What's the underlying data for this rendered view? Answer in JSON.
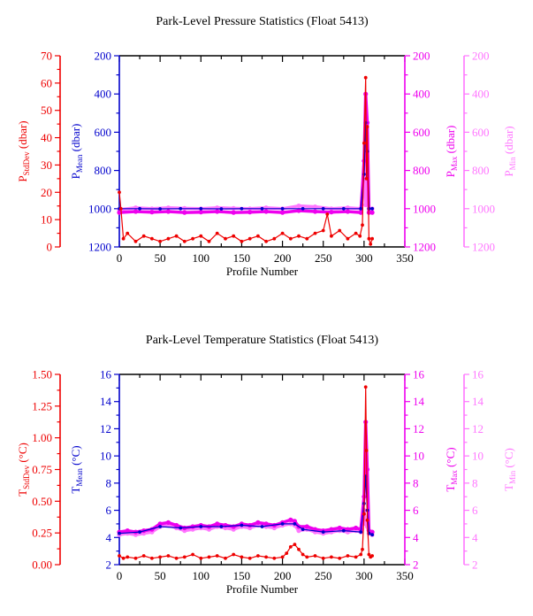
{
  "colors": {
    "stddev": "#ee0000",
    "mean": "#0000cc",
    "max": "#ee00ee",
    "min": "#ff77ff",
    "axis": "#000000"
  },
  "chart_data": [
    {
      "type": "scatter",
      "title": "Park-Level Pressure Statistics (Float 5413)",
      "xlabel": "Profile Number",
      "xlim": [
        0,
        350
      ],
      "xticks": [
        "0",
        "50",
        "100",
        "150",
        "200",
        "250",
        "300",
        "350"
      ],
      "axes": {
        "stddev": {
          "label": "P",
          "sub": "StdDev",
          "unit": " (dbar)",
          "lim": [
            0,
            70
          ],
          "reversed": false,
          "ticks": [
            "0",
            "10",
            "20",
            "30",
            "40",
            "50",
            "60",
            "70"
          ]
        },
        "mean": {
          "label": "P",
          "sub": "Mean",
          "unit": " (dbar)",
          "lim": [
            200,
            1200
          ],
          "reversed": true,
          "ticks": [
            "200",
            "400",
            "600",
            "800",
            "1000",
            "1200"
          ]
        },
        "max": {
          "label": "P",
          "sub": "Max",
          "unit": " (dbar)",
          "lim": [
            200,
            1200
          ],
          "reversed": true,
          "ticks": [
            "200",
            "400",
            "600",
            "800",
            "1000",
            "1200"
          ]
        },
        "min": {
          "label": "P",
          "sub": "Min",
          "unit": " (dbar)",
          "lim": [
            200,
            1200
          ],
          "reversed": true,
          "ticks": [
            "200",
            "400",
            "600",
            "800",
            "1000",
            "1200"
          ]
        }
      },
      "series": [
        {
          "name": "Min",
          "axis": "min",
          "x": [
            0,
            20,
            40,
            60,
            80,
            100,
            120,
            140,
            160,
            180,
            200,
            220,
            240,
            260,
            280,
            296,
            300,
            302,
            304,
            306,
            310
          ],
          "y": [
            1005,
            995,
            1000,
            995,
            998,
            1000,
            995,
            998,
            1000,
            995,
            1000,
            985,
            990,
            1000,
            995,
            1000,
            850,
            980,
            700,
            1000,
            1000
          ]
        },
        {
          "name": "Max",
          "axis": "max",
          "x": [
            0,
            20,
            40,
            60,
            80,
            100,
            120,
            140,
            160,
            180,
            200,
            220,
            240,
            260,
            280,
            296,
            300,
            302,
            304,
            306,
            310
          ],
          "y": [
            1020,
            1015,
            1018,
            1015,
            1020,
            1018,
            1015,
            1020,
            1018,
            1015,
            1020,
            1010,
            1015,
            1018,
            1015,
            1020,
            750,
            400,
            550,
            1020,
            1020
          ]
        },
        {
          "name": "Mean",
          "axis": "mean",
          "x": [
            0,
            25,
            50,
            75,
            100,
            125,
            150,
            175,
            200,
            225,
            250,
            275,
            296,
            300,
            302,
            304,
            306,
            310
          ],
          "y": [
            1000,
            1000,
            1001,
            1000,
            1000,
            1001,
            1000,
            1000,
            1000,
            1000,
            1000,
            1000,
            1000,
            820,
            550,
            700,
            1000,
            1000
          ]
        },
        {
          "name": "StdDev",
          "axis": "stddev",
          "x": [
            0,
            2,
            5,
            10,
            20,
            30,
            40,
            50,
            60,
            70,
            80,
            90,
            100,
            110,
            120,
            130,
            140,
            150,
            160,
            170,
            180,
            190,
            200,
            210,
            220,
            230,
            240,
            250,
            255,
            260,
            270,
            280,
            290,
            295,
            298,
            300,
            302,
            303,
            304,
            306,
            308,
            310
          ],
          "y": [
            20,
            14,
            3,
            5,
            2,
            4,
            3,
            2,
            3,
            4,
            2,
            3,
            4,
            2,
            5,
            3,
            4,
            2,
            3,
            4,
            2,
            3,
            5,
            3,
            4,
            3,
            5,
            6,
            12,
            4,
            6,
            3,
            5,
            4,
            8,
            38,
            62,
            25,
            44,
            3,
            1,
            3
          ]
        }
      ]
    },
    {
      "type": "scatter",
      "title": "Park-Level Temperature Statistics (Float 5413)",
      "xlabel": "Profile Number",
      "xlim": [
        0,
        350
      ],
      "xticks": [
        "0",
        "50",
        "100",
        "150",
        "200",
        "250",
        "300",
        "350"
      ],
      "axes": {
        "stddev": {
          "label": "T",
          "sub": "StdDev",
          "unit": " (°C)",
          "lim": [
            0,
            1.5
          ],
          "reversed": false,
          "ticks": [
            "0.00",
            "0.25",
            "0.50",
            "0.75",
            "1.00",
            "1.25",
            "1.50"
          ]
        },
        "mean": {
          "label": "T",
          "sub": "Mean",
          "unit": " (°C)",
          "lim": [
            2,
            16
          ],
          "reversed": false,
          "ticks": [
            "2",
            "4",
            "6",
            "8",
            "10",
            "12",
            "14",
            "16"
          ]
        },
        "max": {
          "label": "T",
          "sub": "Max",
          "unit": " (°C)",
          "lim": [
            2,
            16
          ],
          "reversed": false,
          "ticks": [
            "2",
            "4",
            "6",
            "8",
            "10",
            "12",
            "14",
            "16"
          ]
        },
        "min": {
          "label": "T",
          "sub": "Min",
          "unit": " (°C)",
          "lim": [
            2,
            16
          ],
          "reversed": false,
          "ticks": [
            "2",
            "4",
            "6",
            "8",
            "10",
            "12",
            "14",
            "16"
          ]
        }
      },
      "series": [
        {
          "name": "Min",
          "axis": "min",
          "x": [
            0,
            10,
            20,
            30,
            40,
            50,
            60,
            70,
            80,
            90,
            100,
            110,
            120,
            130,
            140,
            150,
            160,
            170,
            180,
            190,
            200,
            210,
            215,
            220,
            230,
            240,
            250,
            260,
            270,
            280,
            290,
            296,
            300,
            302,
            304,
            306,
            310
          ],
          "y": [
            4.2,
            4.3,
            4.2,
            4.3,
            4.4,
            4.8,
            4.9,
            4.7,
            4.5,
            4.6,
            4.7,
            4.6,
            4.8,
            4.7,
            4.6,
            4.8,
            4.7,
            4.9,
            4.8,
            4.7,
            4.9,
            5.0,
            4.9,
            4.5,
            4.6,
            4.4,
            4.3,
            4.4,
            4.5,
            4.4,
            4.5,
            4.4,
            6.0,
            5.0,
            4.8,
            4.3,
            4.2
          ]
        },
        {
          "name": "Max",
          "axis": "max",
          "x": [
            0,
            10,
            20,
            30,
            40,
            50,
            60,
            70,
            80,
            90,
            100,
            110,
            120,
            130,
            140,
            150,
            160,
            170,
            180,
            190,
            200,
            210,
            215,
            220,
            230,
            240,
            250,
            260,
            270,
            280,
            290,
            296,
            300,
            302,
            304,
            306,
            310
          ],
          "y": [
            4.4,
            4.5,
            4.4,
            4.5,
            4.6,
            5.0,
            5.1,
            4.9,
            4.7,
            4.8,
            4.9,
            4.8,
            5.0,
            4.9,
            4.8,
            5.0,
            4.9,
            5.1,
            5.0,
            4.9,
            5.1,
            5.3,
            5.2,
            4.8,
            4.8,
            4.6,
            4.5,
            4.6,
            4.7,
            4.6,
            4.7,
            4.6,
            7.0,
            12.5,
            9.0,
            4.5,
            4.4
          ]
        },
        {
          "name": "Mean",
          "axis": "mean",
          "x": [
            0,
            25,
            50,
            75,
            100,
            125,
            150,
            175,
            200,
            215,
            225,
            250,
            275,
            296,
            300,
            302,
            304,
            306,
            310
          ],
          "y": [
            4.3,
            4.4,
            4.8,
            4.7,
            4.8,
            4.8,
            4.9,
            4.8,
            5.0,
            5.0,
            4.6,
            4.4,
            4.5,
            4.4,
            6.5,
            8.5,
            6.0,
            4.3,
            4.2
          ]
        },
        {
          "name": "StdDev",
          "axis": "stddev",
          "x": [
            0,
            5,
            10,
            20,
            30,
            40,
            50,
            60,
            70,
            80,
            90,
            100,
            110,
            120,
            130,
            140,
            150,
            160,
            170,
            180,
            190,
            200,
            205,
            210,
            215,
            220,
            225,
            230,
            240,
            250,
            260,
            270,
            280,
            290,
            296,
            298,
            300,
            302,
            303,
            304,
            306,
            308,
            310
          ],
          "y": [
            0.07,
            0.05,
            0.06,
            0.05,
            0.07,
            0.05,
            0.06,
            0.07,
            0.05,
            0.06,
            0.08,
            0.05,
            0.06,
            0.07,
            0.05,
            0.08,
            0.06,
            0.05,
            0.07,
            0.06,
            0.05,
            0.06,
            0.09,
            0.14,
            0.16,
            0.12,
            0.08,
            0.06,
            0.07,
            0.05,
            0.06,
            0.05,
            0.07,
            0.06,
            0.08,
            0.12,
            0.4,
            1.4,
            0.9,
            0.35,
            0.08,
            0.06,
            0.07
          ]
        }
      ]
    }
  ]
}
